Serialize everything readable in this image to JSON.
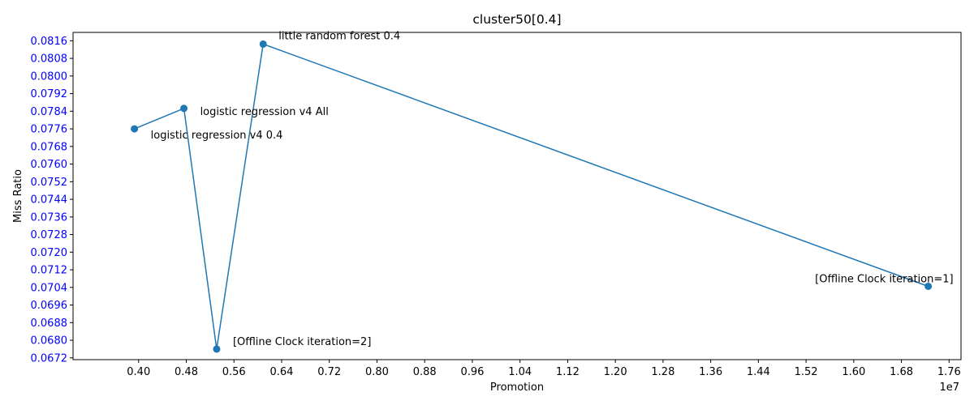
{
  "chart_data": {
    "type": "line",
    "title": "cluster50[0.4]",
    "xlabel": "Promotion",
    "ylabel": "Miss Ratio",
    "x_offset_label": "1e7",
    "xlim": [
      2900000,
      17800000
    ],
    "ylim": [
      0.06712,
      0.08198
    ],
    "x_ticks": [
      "0.40",
      "0.48",
      "0.56",
      "0.64",
      "0.72",
      "0.80",
      "0.88",
      "0.96",
      "1.04",
      "1.12",
      "1.20",
      "1.28",
      "1.36",
      "1.44",
      "1.52",
      "1.60",
      "1.68",
      "1.76"
    ],
    "y_ticks": [
      "0.0672",
      "0.0680",
      "0.0688",
      "0.0696",
      "0.0704",
      "0.0712",
      "0.0720",
      "0.0728",
      "0.0736",
      "0.0744",
      "0.0752",
      "0.0760",
      "0.0768",
      "0.0776",
      "0.0784",
      "0.0792",
      "0.0800",
      "0.0808",
      "0.0816"
    ],
    "grid": false,
    "series": [
      {
        "points": [
          {
            "x": 3930000,
            "y": 0.0776,
            "label": "logistic regression v4 0.4"
          },
          {
            "x": 4760000,
            "y": 0.07853,
            "label": "logistic regression v4 All"
          },
          {
            "x": 5310000,
            "y": 0.0676,
            "label": "[Offline Clock iteration=2]"
          },
          {
            "x": 6090000,
            "y": 0.08145,
            "label": "little random forest 0.4"
          },
          {
            "x": 17250000,
            "y": 0.07045,
            "label": "[Offline Clock iteration=1]"
          }
        ]
      }
    ],
    "colors": {
      "line": "#1f77b4",
      "marker": "#1f77b4",
      "y_tick_labels": "#0000ff",
      "x_tick_labels": "#000000"
    }
  }
}
